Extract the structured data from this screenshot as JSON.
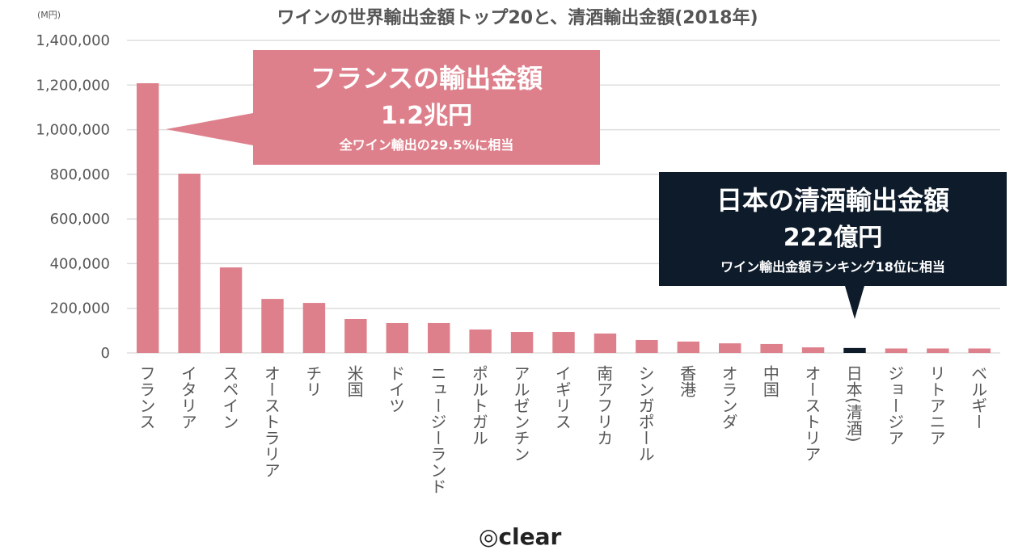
{
  "chart_data": {
    "type": "bar",
    "title": "ワインの世界輸出金額トップ20と、清酒輸出金額(2018年)",
    "ylabel": "(M円)",
    "ylim": [
      0,
      1400000
    ],
    "yticks": [
      "0",
      "200,000",
      "400,000",
      "600,000",
      "800,000",
      "1,000,000",
      "1,200,000",
      "1,400,000"
    ],
    "grid": true,
    "categories": [
      "フランス",
      "イタリア",
      "スペイン",
      "オーストラリア",
      "チリ",
      "米国",
      "ドイツ",
      "ニュージーランド",
      "ポルトガル",
      "アルゼンチン",
      "イギリス",
      "南アフリカ",
      "シンガポール",
      "香港",
      "オランダ",
      "中国",
      "オーストリア",
      "日本(清酒)",
      "ジョージア",
      "リトアニア",
      "ベルギー"
    ],
    "values": [
      1208000,
      803000,
      383000,
      242000,
      224000,
      152000,
      134000,
      134000,
      105000,
      94000,
      94000,
      87000,
      58000,
      51000,
      43000,
      40000,
      25000,
      22200,
      20000,
      20000,
      20000
    ],
    "highlight_index": 17,
    "colors": {
      "bar": "#de808b",
      "highlight": "#0d1b2a"
    }
  },
  "callouts": {
    "france": {
      "line1": "フランスの輸出金額",
      "line2": "1.2兆円",
      "line3": "全ワイン輸出の29.5%に相当"
    },
    "japan": {
      "line1": "日本の清酒輸出金額",
      "line2": "222億円",
      "line3": "ワイン輸出金額ランキング18位に相当"
    }
  },
  "logo": "clear"
}
